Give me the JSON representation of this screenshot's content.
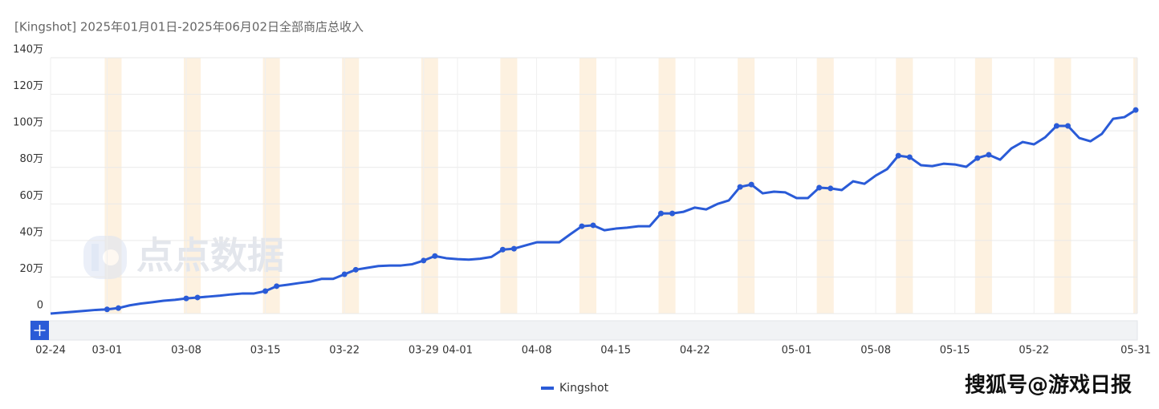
{
  "chart_data": {
    "type": "line",
    "title": "[Kingshot] 2025年01月01日-2025年06月02日全部商店总收入",
    "categories": [
      "02-24",
      null,
      null,
      null,
      null,
      "03-01",
      null,
      null,
      null,
      null,
      null,
      null,
      "03-08",
      null,
      null,
      null,
      null,
      null,
      null,
      "03-15",
      null,
      null,
      null,
      null,
      null,
      null,
      "03-22",
      null,
      null,
      null,
      null,
      null,
      null,
      "03-29",
      null,
      null,
      "04-01",
      null,
      null,
      null,
      null,
      null,
      null,
      "04-08",
      null,
      null,
      null,
      null,
      null,
      null,
      "04-15",
      null,
      null,
      null,
      null,
      null,
      null,
      "04-22",
      null,
      null,
      null,
      null,
      null,
      null,
      null,
      null,
      "05-01",
      null,
      null,
      null,
      null,
      null,
      null,
      "05-08",
      null,
      null,
      null,
      null,
      null,
      null,
      "05-15",
      null,
      null,
      null,
      null,
      null,
      null,
      "05-22",
      null,
      null,
      null,
      null,
      null,
      null,
      null,
      null,
      "05-31"
    ],
    "series": [
      {
        "name": "Kingshot",
        "color": "#2a5bd7",
        "values": [
          0,
          0.5,
          1,
          1.5,
          2,
          2.3,
          3,
          4.5,
          5.5,
          6.2,
          7,
          7.5,
          8.3,
          8.8,
          9.3,
          9.8,
          10.5,
          11,
          11,
          12.3,
          15,
          15.8,
          16.7,
          17.5,
          19,
          19,
          21.5,
          24,
          25,
          26,
          26.3,
          26.3,
          27,
          29,
          31.5,
          30.3,
          29.8,
          29.5,
          30,
          31,
          35,
          35.5,
          37.3,
          39,
          39,
          39,
          43.5,
          47.8,
          48.3,
          45.6,
          46.5,
          47,
          47.8,
          47.8,
          54.8,
          54.8,
          55.7,
          58,
          57,
          60,
          61.9,
          69.3,
          70.6,
          65.8,
          66.7,
          66.3,
          63.2,
          63.2,
          68.9,
          68.5,
          67.6,
          72.4,
          71,
          75.5,
          79,
          86.4,
          85.6,
          81.2,
          80.7,
          82,
          81.6,
          80.3,
          85.1,
          86.9,
          84.2,
          90.4,
          93.9,
          92.6,
          96.5,
          102.7,
          102.7,
          96.1,
          94.3,
          98.3,
          106.6,
          107.5,
          111.4
        ]
      }
    ],
    "ylim": [
      0,
      140
    ],
    "yticks": [
      0,
      {
        "value": 20,
        "label": "20万"
      },
      {
        "value": 40,
        "label": "40万"
      },
      {
        "value": 60,
        "label": "60万"
      },
      {
        "value": 80,
        "label": "80万"
      },
      {
        "value": 100,
        "label": "100万"
      },
      {
        "value": 120,
        "label": "120万"
      },
      {
        "value": 140,
        "label": "140万"
      }
    ],
    "grid": true,
    "legend": "bottom"
  },
  "watermark": "点点数据",
  "credit": "搜狐号@游戏日报"
}
